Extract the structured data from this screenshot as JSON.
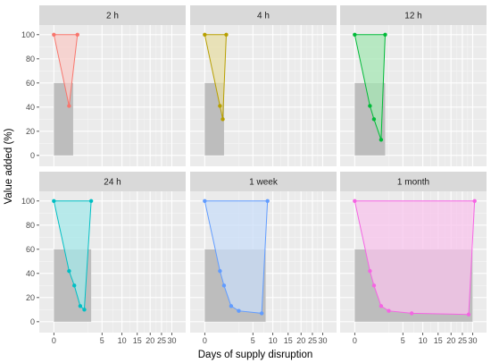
{
  "chart_data": {
    "type": "area",
    "xlabel": "Days of supply disruption",
    "ylabel": "Value added (%)",
    "x_ticks": [
      0,
      5,
      10,
      15,
      20,
      25,
      30
    ],
    "x_tick_labels": [
      "0",
      "5",
      "10",
      "15",
      "20",
      "25",
      "30"
    ],
    "y_ticks": [
      0,
      20,
      40,
      60,
      80,
      100
    ],
    "y_tick_labels": [
      "0",
      "20",
      "40",
      "60",
      "80",
      "100"
    ],
    "ylim": [
      0,
      100
    ],
    "x_scale": "sqrt",
    "grid": true,
    "panels": [
      {
        "strip": "2 h",
        "color": "#F8766D",
        "fill": "#F8CBC7",
        "shadow_x": 0.8,
        "points": [
          [
            0,
            100
          ],
          [
            0.5,
            41
          ],
          [
            1.2,
            100
          ]
        ]
      },
      {
        "strip": "4 h",
        "color": "#B79F00",
        "fill": "#E7DDA6",
        "shadow_x": 0.8,
        "points": [
          [
            0,
            100
          ],
          [
            0.5,
            41
          ],
          [
            0.7,
            30
          ],
          [
            1.0,
            100
          ]
        ]
      },
      {
        "strip": "12 h",
        "color": "#00BA38",
        "fill": "#A6E7B4",
        "shadow_x": 2.0,
        "points": [
          [
            0,
            100
          ],
          [
            0.5,
            41
          ],
          [
            0.8,
            30
          ],
          [
            1.5,
            13
          ],
          [
            2.0,
            100
          ]
        ]
      },
      {
        "strip": "24 h",
        "color": "#00BFC4",
        "fill": "#A6E8E9",
        "shadow_x": 3.0,
        "points": [
          [
            0,
            100
          ],
          [
            0.5,
            42
          ],
          [
            0.9,
            30
          ],
          [
            1.5,
            13
          ],
          [
            2.0,
            10
          ],
          [
            3.0,
            100
          ]
        ]
      },
      {
        "strip": "1 week",
        "color": "#619CFF",
        "fill": "#CADDF8",
        "shadow_x": 8.0,
        "points": [
          [
            0,
            100
          ],
          [
            0.5,
            42
          ],
          [
            0.8,
            30
          ],
          [
            1.5,
            13
          ],
          [
            2.5,
            9
          ],
          [
            7.0,
            7
          ],
          [
            8.5,
            100
          ]
        ]
      },
      {
        "strip": "1 month",
        "color": "#F564E3",
        "fill": "#F8C4EC",
        "shadow_x": 30.0,
        "points": [
          [
            0,
            100
          ],
          [
            0.5,
            42
          ],
          [
            0.8,
            30
          ],
          [
            1.5,
            13
          ],
          [
            2.5,
            9
          ],
          [
            7.0,
            7
          ],
          [
            28.0,
            6
          ],
          [
            31.0,
            100
          ]
        ]
      }
    ]
  }
}
